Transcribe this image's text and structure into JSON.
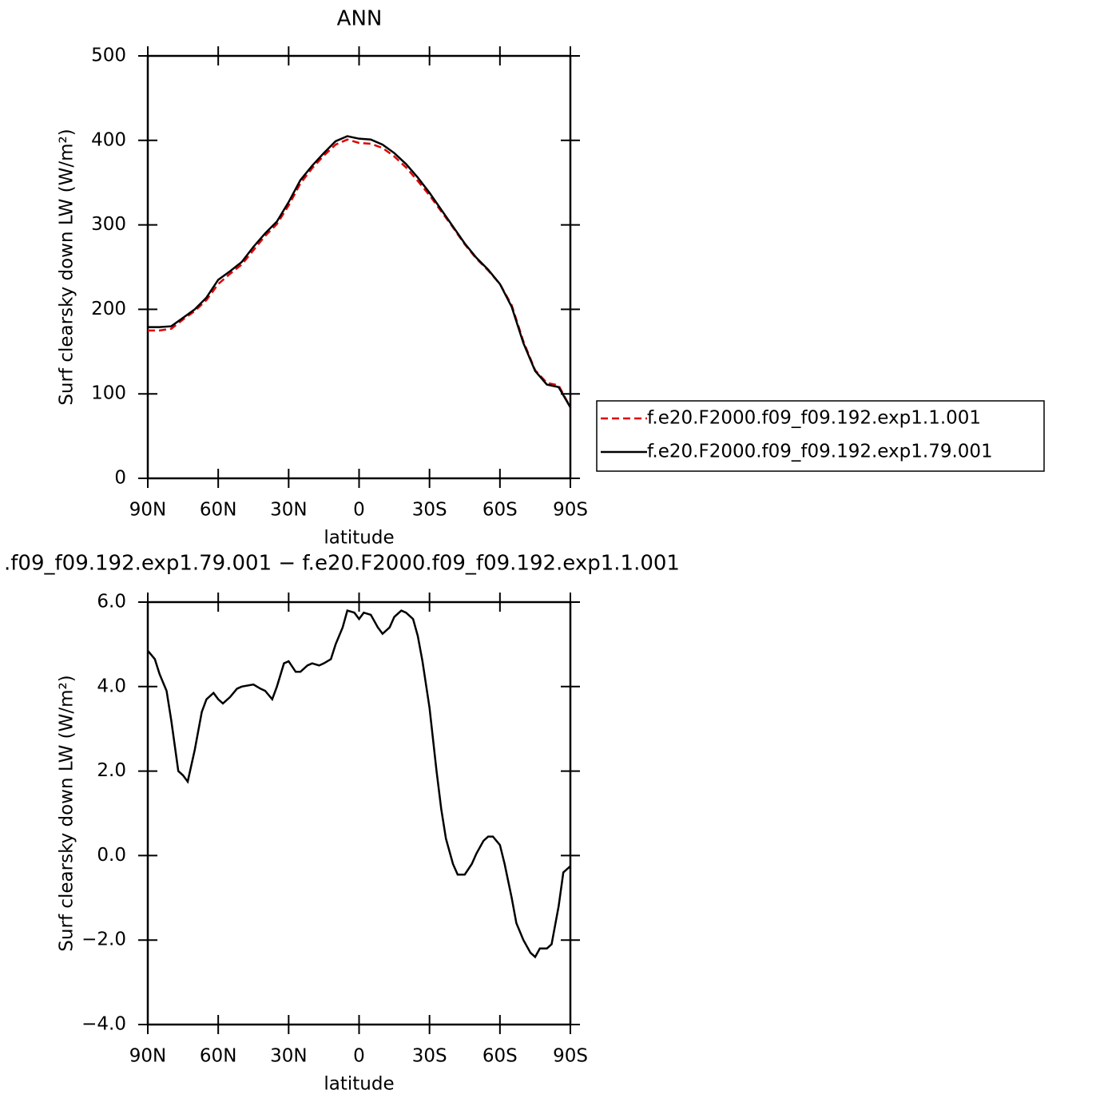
{
  "chart_data": [
    {
      "type": "line",
      "title": "ANN",
      "xlabel": "latitude",
      "ylabel": "Surf clearsky down LW (W/m²)",
      "x": [
        90,
        85,
        80,
        75,
        70,
        65,
        60,
        55,
        50,
        45,
        40,
        35,
        30,
        25,
        20,
        15,
        10,
        5,
        0,
        -5,
        -10,
        -15,
        -20,
        -25,
        -30,
        -35,
        -40,
        -45,
        -50,
        -55,
        -60,
        -65,
        -70,
        -75,
        -80,
        -85,
        -90
      ],
      "series": [
        {
          "name": "f.e20.F2000.f09_f09.192.exp1.1.001",
          "color": "#e00000",
          "dash": true,
          "values": [
            175,
            175,
            177,
            188,
            198,
            211,
            230,
            242,
            253,
            270,
            287,
            301,
            323,
            349,
            367,
            382,
            395,
            401,
            397,
            396,
            391,
            381,
            368,
            352,
            335,
            316,
            297,
            277,
            260,
            246,
            230,
            205,
            162,
            128,
            113,
            110,
            84
          ]
        },
        {
          "name": "f.e20.F2000.f09_f09.192.exp1.79.001",
          "color": "#000000",
          "dash": false,
          "values": [
            179,
            179,
            180,
            190,
            200,
            214,
            235,
            245,
            256,
            274,
            290,
            304,
            327,
            353,
            370,
            385,
            399,
            405,
            402,
            401,
            395,
            385,
            372,
            356,
            338,
            318,
            298,
            278,
            261,
            247,
            230,
            203,
            160,
            127,
            111,
            108,
            84
          ]
        }
      ],
      "xlim": [
        90,
        -90
      ],
      "xticks": [
        {
          "value": 90,
          "label": "90N"
        },
        {
          "value": 60,
          "label": "60N"
        },
        {
          "value": 30,
          "label": "30N"
        },
        0,
        {
          "value": -30,
          "label": "30S"
        },
        {
          "value": -60,
          "label": "60S"
        },
        {
          "value": -90,
          "label": "90S"
        }
      ],
      "ylim": [
        0,
        500
      ],
      "yticks": [
        0,
        100,
        200,
        300,
        400,
        500
      ],
      "legend": "outside-right"
    },
    {
      "type": "line",
      "title": ".f09_f09.192.exp1.79.001 − f.e20.F2000.f09_f09.192.exp1.1.001",
      "xlabel": "latitude",
      "ylabel": "Surf clearsky down LW (W/m²)",
      "x": [
        90,
        87,
        85,
        82,
        80,
        77,
        75,
        73,
        70,
        67,
        65,
        62,
        60,
        58,
        55,
        52,
        50,
        45,
        42,
        40,
        37,
        35,
        32,
        30,
        27,
        25,
        22,
        20,
        17,
        15,
        12,
        10,
        7,
        5,
        2,
        0,
        -2,
        -5,
        -8,
        -10,
        -13,
        -15,
        -18,
        -20,
        -23,
        -25,
        -27,
        -30,
        -33,
        -35,
        -37,
        -40,
        -42,
        -45,
        -48,
        -50,
        -53,
        -55,
        -57,
        -60,
        -62,
        -65,
        -67,
        -70,
        -73,
        -75,
        -77,
        -80,
        -82,
        -85,
        -87,
        -90
      ],
      "series": [
        {
          "color": "#000000",
          "dash": false,
          "values": [
            4.85,
            4.65,
            4.3,
            3.9,
            3.2,
            2.0,
            1.9,
            1.75,
            2.5,
            3.4,
            3.7,
            3.85,
            3.7,
            3.6,
            3.75,
            3.95,
            4.0,
            4.05,
            3.95,
            3.9,
            3.7,
            4.0,
            4.55,
            4.6,
            4.35,
            4.35,
            4.5,
            4.55,
            4.5,
            4.55,
            4.65,
            5.0,
            5.4,
            5.8,
            5.75,
            5.6,
            5.75,
            5.7,
            5.4,
            5.25,
            5.4,
            5.65,
            5.8,
            5.75,
            5.6,
            5.2,
            4.6,
            3.5,
            2.0,
            1.1,
            0.4,
            -0.2,
            -0.45,
            -0.45,
            -0.2,
            0.05,
            0.35,
            0.45,
            0.45,
            0.25,
            -0.2,
            -1.0,
            -1.6,
            -2.0,
            -2.3,
            -2.4,
            -2.2,
            -2.2,
            -2.1,
            -1.2,
            -0.4,
            -0.25
          ]
        }
      ],
      "xlim": [
        90,
        -90
      ],
      "xticks": [
        {
          "value": 90,
          "label": "90N"
        },
        {
          "value": 60,
          "label": "60N"
        },
        {
          "value": 30,
          "label": "30N"
        },
        0,
        {
          "value": -30,
          "label": "30S"
        },
        {
          "value": -60,
          "label": "60S"
        },
        {
          "value": -90,
          "label": "90S"
        }
      ],
      "ylim": [
        -4,
        6
      ],
      "yticks": [
        {
          "value": -4,
          "label": "−4.0"
        },
        {
          "value": -2,
          "label": "−2.0"
        },
        {
          "value": 0,
          "label": "0.0"
        },
        {
          "value": 2,
          "label": "2.0"
        },
        {
          "value": 4,
          "label": "4.0"
        },
        {
          "value": 6,
          "label": "6.0"
        }
      ]
    }
  ]
}
